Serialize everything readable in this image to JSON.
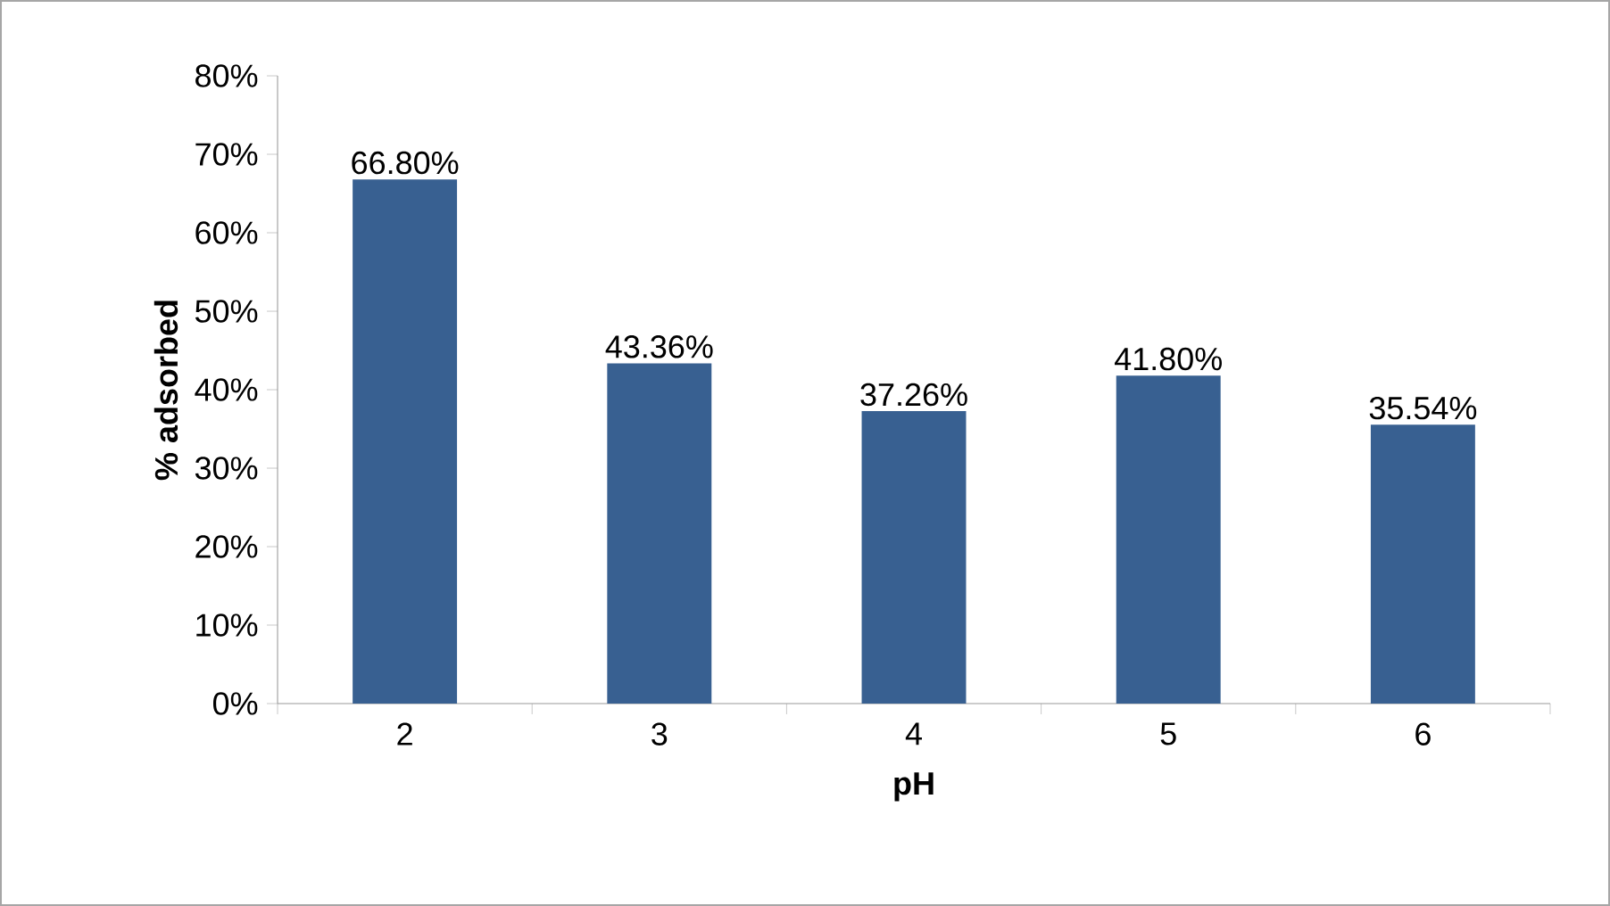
{
  "chart_data": {
    "type": "bar",
    "xlabel": "pH",
    "ylabel": "% adsorbed",
    "categories": [
      "2",
      "3",
      "4",
      "5",
      "6"
    ],
    "values": [
      66.8,
      43.36,
      37.26,
      41.8,
      35.54
    ],
    "value_labels": [
      "66.80%",
      "43.36%",
      "37.26%",
      "41.80%",
      "35.54%"
    ],
    "color": "#386091",
    "ylim": [
      0,
      80
    ],
    "yticks": [
      {
        "value": 0,
        "label": "0%"
      },
      {
        "value": 10,
        "label": "10%"
      },
      {
        "value": 20,
        "label": "20%"
      },
      {
        "value": 30,
        "label": "30%"
      },
      {
        "value": 40,
        "label": "40%"
      },
      {
        "value": 50,
        "label": "50%"
      },
      {
        "value": 60,
        "label": "60%"
      },
      {
        "value": 70,
        "label": "70%"
      },
      {
        "value": 80,
        "label": "80%"
      }
    ]
  }
}
